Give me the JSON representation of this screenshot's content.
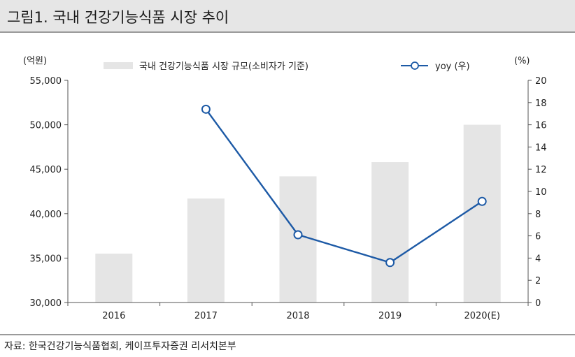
{
  "title": "그림1. 국내 건강기능식품 시장 추이",
  "source": "자료: 한국건강기능식품협회, 케이프투자증권 리서치본부",
  "chart_data": {
    "type": "bar",
    "categories": [
      "2016",
      "2017",
      "2018",
      "2019",
      "2020(E)"
    ],
    "series": [
      {
        "name": "국내 건강기능식품 시장 규모(소비자가 기준)",
        "type": "bar",
        "axis": "left",
        "values": [
          35500,
          41700,
          44200,
          45800,
          50000
        ]
      },
      {
        "name": "yoy (우)",
        "type": "line",
        "axis": "right",
        "values": [
          null,
          17.4,
          6.1,
          3.6,
          9.1
        ]
      }
    ],
    "y_left": {
      "unit_label": "(억원)",
      "ylim": [
        30000,
        55000
      ],
      "ticks": [
        "30,000",
        "35,000",
        "40,000",
        "45,000",
        "50,000",
        "55,000"
      ]
    },
    "y_right": {
      "unit_label": "(%)",
      "ylim": [
        0,
        20
      ],
      "ticks": [
        "0",
        "2",
        "4",
        "6",
        "8",
        "10",
        "12",
        "14",
        "16",
        "18",
        "20"
      ]
    },
    "legend_position": "top",
    "grid": false,
    "colors": {
      "bar": "#e5e5e5",
      "line": "#1d5aa6",
      "marker_fill": "#ffffff"
    }
  }
}
